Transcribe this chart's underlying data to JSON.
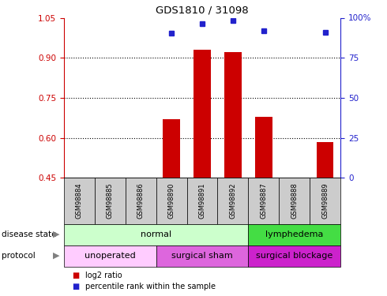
{
  "title": "GDS1810 / 31098",
  "samples": [
    "GSM98884",
    "GSM98885",
    "GSM98886",
    "GSM98890",
    "GSM98891",
    "GSM98892",
    "GSM98887",
    "GSM98888",
    "GSM98889"
  ],
  "log2_ratio": [
    null,
    null,
    null,
    0.67,
    0.93,
    0.92,
    0.68,
    null,
    0.585
  ],
  "percentile_rank": [
    null,
    null,
    null,
    0.905,
    0.965,
    0.985,
    0.92,
    null,
    0.91
  ],
  "ylim_left": [
    0.45,
    1.05
  ],
  "yticks_left": [
    0.45,
    0.6,
    0.75,
    0.9,
    1.05
  ],
  "ylim_right": [
    0,
    100
  ],
  "yticks_right": [
    0,
    25,
    50,
    75,
    100
  ],
  "yticklabels_right": [
    "0",
    "25",
    "50",
    "75",
    "100%"
  ],
  "bar_color": "#cc0000",
  "dot_color": "#2222cc",
  "bar_bottom": 0.45,
  "disease_state_groups": [
    {
      "label": "normal",
      "start": 0,
      "end": 6,
      "color": "#ccffcc"
    },
    {
      "label": "lymphedema",
      "start": 6,
      "end": 9,
      "color": "#44dd44"
    }
  ],
  "protocol_groups": [
    {
      "label": "unoperated",
      "start": 0,
      "end": 3,
      "color": "#ffccff"
    },
    {
      "label": "surgical sham",
      "start": 3,
      "end": 6,
      "color": "#dd66dd"
    },
    {
      "label": "surgical blockage",
      "start": 6,
      "end": 9,
      "color": "#cc22cc"
    }
  ],
  "legend_labels": [
    "log2 ratio",
    "percentile rank within the sample"
  ],
  "legend_colors": [
    "#cc0000",
    "#2222cc"
  ],
  "label_disease_state": "disease state",
  "label_protocol": "protocol",
  "tick_color_left": "#cc0000",
  "tick_color_right": "#2222cc",
  "gridline_color": "#000000",
  "sample_bg_color": "#cccccc"
}
